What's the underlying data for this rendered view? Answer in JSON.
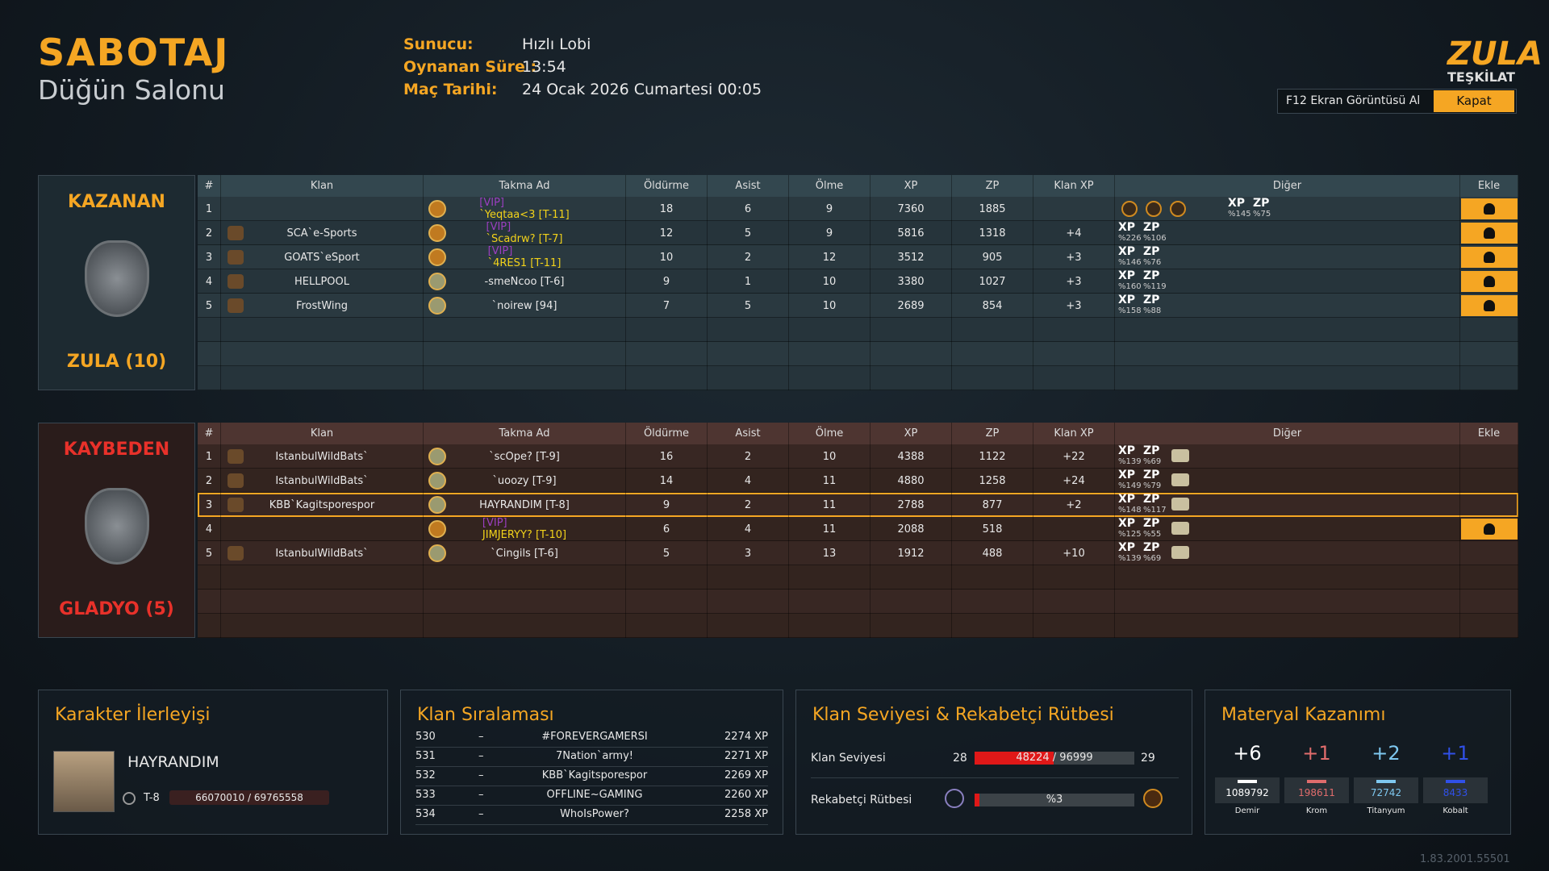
{
  "header": {
    "title": "SABOTAJ",
    "subtitle": "Düğün Salonu",
    "info": [
      {
        "label": "Sunucu:",
        "value": "Hızlı Lobi"
      },
      {
        "label": "Oynanan Süre :",
        "value": "13:54"
      },
      {
        "label": "Maç Tarihi:",
        "value": "24 Ocak 2026 Cumartesi 00:05"
      }
    ],
    "logo": [
      "ZULA",
      "TEŞKİLAT"
    ],
    "screenshot_button": "F12 Ekran Görüntüsü Al",
    "close_button": "Kapat"
  },
  "columns": [
    "#",
    "Klan",
    "Takma Ad",
    "Öldürme",
    "Asist",
    "Ölme",
    "XP",
    "ZP",
    "Klan XP",
    "Diğer",
    "Ekle"
  ],
  "bonus_labels": [
    "XP",
    "ZP"
  ],
  "teams": [
    {
      "result": "KAZANAN",
      "name": "ZULA (10)",
      "rows": [
        {
          "rank": "1",
          "vip": "[VIP]",
          "nick": "`Yeqtaa<3 [T-11]",
          "kills": 18,
          "assists": 6,
          "deaths": 9,
          "xp": 7360,
          "zp": 1885,
          "bonus": [
            "%145",
            "%75"
          ],
          "add": true
        },
        {
          "rank": "2",
          "clan": "SCA`e-Sports",
          "vip": "[VIP]",
          "nick": "`Scadrw? [T-7]",
          "kills": 12,
          "assists": 5,
          "deaths": 9,
          "xp": 5816,
          "zp": 1318,
          "clan_xp": "+4",
          "bonus": [
            "%226",
            "%106"
          ],
          "add": true
        },
        {
          "rank": "3",
          "clan": "GOATS`eSport",
          "vip": "[VIP]",
          "nick": "`4RES1 [T-11]",
          "kills": 10,
          "assists": 2,
          "deaths": 12,
          "xp": 3512,
          "zp": 905,
          "clan_xp": "+3",
          "bonus": [
            "%146",
            "%76"
          ],
          "add": true
        },
        {
          "rank": "4",
          "clan": "HELLPOOL",
          "nick": "-smeNcoo [T-6]",
          "kills": 9,
          "assists": 1,
          "deaths": 10,
          "xp": 3380,
          "zp": 1027,
          "clan_xp": "+3",
          "bonus": [
            "%160",
            "%119"
          ],
          "add": true
        },
        {
          "rank": "5",
          "clan": "FrostWing",
          "nick": "`noirew [94]",
          "kills": 7,
          "assists": 5,
          "deaths": 10,
          "xp": 2689,
          "zp": 854,
          "clan_xp": "+3",
          "bonus": [
            "%158",
            "%88"
          ],
          "add": true
        }
      ]
    },
    {
      "result": "KAYBEDEN",
      "name": "GLADYO (5)",
      "rows": [
        {
          "rank": "1",
          "clan": "IstanbulWildBats`",
          "nick": "`scOpe? [T-9]",
          "kills": 16,
          "assists": 2,
          "deaths": 10,
          "xp": 4388,
          "zp": 1122,
          "clan_xp": "+22",
          "bonus": [
            "%139",
            "%69"
          ]
        },
        {
          "rank": "2",
          "clan": "IstanbulWildBats`",
          "nick": "`uoozy [T-9]",
          "kills": 14,
          "assists": 4,
          "deaths": 11,
          "xp": 4880,
          "zp": 1258,
          "clan_xp": "+24",
          "bonus": [
            "%149",
            "%79"
          ]
        },
        {
          "rank": "3",
          "clan": "KBB`Kagitsporespor",
          "nick": "HAYRANDIM [T-8]",
          "kills": 9,
          "assists": 2,
          "deaths": 11,
          "xp": 2788,
          "zp": 877,
          "clan_xp": "+2",
          "bonus": [
            "%148",
            "%117"
          ],
          "highlight": true
        },
        {
          "rank": "4",
          "vip": "[VIP]",
          "nick": "JIMJERYY? [T-10]",
          "kills": 6,
          "assists": 4,
          "deaths": 11,
          "xp": 2088,
          "zp": 518,
          "bonus": [
            "%125",
            "%55"
          ],
          "add": true
        },
        {
          "rank": "5",
          "clan": "IstanbulWildBats`",
          "nick": "`Cingils [T-6]",
          "kills": 5,
          "assists": 3,
          "deaths": 13,
          "xp": 1912,
          "zp": 488,
          "clan_xp": "+10",
          "bonus": [
            "%139",
            "%69"
          ]
        }
      ]
    }
  ],
  "progress": {
    "title": "Karakter İlerleyişi",
    "name": "HAYRANDIM",
    "rank": "T-8",
    "xp": "66070010 / 69765558"
  },
  "clan_ranking": {
    "title": "Klan Sıralaması",
    "separator": "–",
    "rows": [
      {
        "rank": "530",
        "name": "#FOREVERGAMERSI",
        "xp": "2274 XP"
      },
      {
        "rank": "531",
        "name": "7Nation`army!",
        "xp": "2271 XP"
      },
      {
        "rank": "532",
        "name": "KBB`Kagitsporespor",
        "xp": "2269 XP"
      },
      {
        "rank": "533",
        "name": "OFFLINE~GAMING",
        "xp": "2260 XP"
      },
      {
        "rank": "534",
        "name": "WhoIsPower?",
        "xp": "2258 XP"
      }
    ]
  },
  "clan_level": {
    "title": "Klan Seviyesi & Rekabetçi Rütbesi",
    "level": {
      "label": "Klan Seviyesi",
      "from": "28",
      "to": "29",
      "current": 48224,
      "max": 96999,
      "text": "48224 / 96999"
    },
    "rank": {
      "label": "Rekabetçi Rütbesi",
      "percent": 3,
      "text": "%3"
    }
  },
  "materials": {
    "title": "Materyal Kazanımı",
    "items": [
      {
        "gain": "+6",
        "total": 1089792,
        "name": "Demir",
        "color": "#ffffff"
      },
      {
        "gain": "+1",
        "total": 198611,
        "name": "Krom",
        "color": "#e06c6c"
      },
      {
        "gain": "+2",
        "total": 72742,
        "name": "Titanyum",
        "color": "#7ec8f0"
      },
      {
        "gain": "+1",
        "total": 8433,
        "name": "Kobalt",
        "color": "#3050e8"
      }
    ]
  },
  "version": "1.83.2001.55501"
}
